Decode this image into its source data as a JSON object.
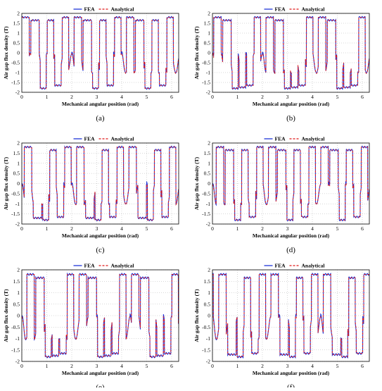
{
  "figure": {
    "panels": [
      {
        "caption": "(a)"
      },
      {
        "caption": "(b)"
      },
      {
        "caption": "(c)"
      },
      {
        "caption": "(d)"
      },
      {
        "caption": "(e)"
      },
      {
        "caption": "(f)"
      }
    ]
  },
  "chart_data": [
    {
      "type": "line",
      "caption": "(a)",
      "xlabel": "Mechanical angular position (rad)",
      "ylabel": "Air gap flux density (T)",
      "xlim": [
        0,
        6.283
      ],
      "ylim": [
        -2,
        2
      ],
      "xticks": [
        "0",
        "1",
        "2",
        "3",
        "4",
        "5",
        "6"
      ],
      "yticks": [
        "2",
        "1.5",
        "1",
        "0.5",
        "0",
        "-0.5",
        "-1",
        "-1.5",
        "-2"
      ],
      "grid": true,
      "legend_position": "top-center",
      "series": [
        {
          "name": "FEA",
          "color": "#1f35d8",
          "style": "solid"
        },
        {
          "name": "Analytical",
          "color": "#e01818",
          "style": "dashed"
        }
      ],
      "pattern": [
        {
          "x_start": 0.0,
          "x_end": 0.35,
          "level": 1.8
        },
        {
          "x_start": 0.35,
          "x_end": 0.7,
          "level": -1.8
        },
        {
          "x_start": 0.75,
          "x_end": 1.0,
          "level": 1.65
        },
        {
          "x_start": 1.05,
          "x_end": 1.25,
          "level": 1.65
        },
        {
          "x_start": 1.3,
          "x_end": 1.55,
          "level": -1.65
        },
        {
          "x_start": 1.65,
          "x_end": 1.95,
          "level": 1.8
        },
        {
          "x_start": 1.95,
          "x_end": 2.3,
          "level": -1.8
        },
        {
          "x_start": 2.35,
          "x_end": 2.65,
          "level": 1.8
        }
      ]
    },
    {
      "type": "line",
      "caption": "(b)",
      "xlabel": "Mechanical angular position (rad)",
      "ylabel": "Air gap flux density (T)",
      "xlim": [
        0,
        6.283
      ],
      "ylim": [
        -2,
        2
      ],
      "grid": true,
      "legend_position": "top-center",
      "series": [
        {
          "name": "FEA",
          "color": "#1f35d8"
        },
        {
          "name": "Analytical",
          "color": "#e01818"
        }
      ]
    },
    {
      "type": "line",
      "caption": "(c)",
      "xlabel": "Mechanical angular position (rad)",
      "ylabel": "Air gap flux density (T)",
      "xlim": [
        0,
        6.283
      ],
      "ylim": [
        -2,
        2
      ],
      "grid": true,
      "legend_position": "top-center",
      "series": [
        {
          "name": "FEA",
          "color": "#1f35d8"
        },
        {
          "name": "Analytical",
          "color": "#e01818"
        }
      ]
    },
    {
      "type": "line",
      "caption": "(d)",
      "xlabel": "Mechanical angular position (rad)",
      "ylabel": "Air gap flux density (T)",
      "xlim": [
        0,
        6.283
      ],
      "ylim": [
        -2,
        2
      ],
      "grid": true,
      "legend_position": "top-center",
      "series": [
        {
          "name": "FEA",
          "color": "#1f35d8"
        },
        {
          "name": "Analytical",
          "color": "#e01818"
        }
      ]
    },
    {
      "type": "line",
      "caption": "(e)",
      "xlabel": "Mechanical angular position (rad)",
      "ylabel": "Air gap flux density (T)",
      "xlim": [
        0,
        6.283
      ],
      "ylim": [
        -2,
        2
      ],
      "grid": true,
      "legend_position": "top-center",
      "series": [
        {
          "name": "FEA",
          "color": "#1f35d8"
        },
        {
          "name": "Analytical",
          "color": "#e01818"
        }
      ]
    },
    {
      "type": "line",
      "caption": "(f)",
      "xlabel": "Mechanical angular position (rad)",
      "ylabel": "Air gap flux density (T)",
      "xlim": [
        0,
        6.283
      ],
      "ylim": [
        -2,
        2
      ],
      "grid": true,
      "legend_position": "top-center",
      "series": [
        {
          "name": "FEA",
          "color": "#1f35d8"
        },
        {
          "name": "Analytical",
          "color": "#e01818"
        }
      ]
    }
  ],
  "axes": {
    "xlabel": "Mechanical angular position (rad)",
    "ylabel": "Air gap flux density (T)",
    "xticks": [
      "0",
      "1",
      "2",
      "3",
      "4",
      "5",
      "6"
    ],
    "yticks": [
      "2",
      "1.5",
      "1",
      "0.5",
      "0",
      "-0.5",
      "-1",
      "-1.5",
      "-2"
    ]
  },
  "legend": {
    "fea": "FEA",
    "analytical": "Analytical"
  },
  "colors": {
    "fea": "#1f35d8",
    "analytical": "#e01818",
    "grid": "#b0b0b0"
  }
}
